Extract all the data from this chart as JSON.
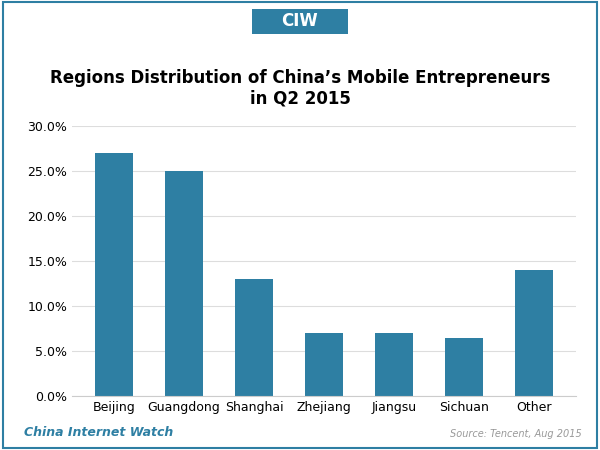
{
  "title": "Regions Distribution of China’s Mobile Entrepreneurs\nin Q2 2015",
  "categories": [
    "Beijing",
    "Guangdong",
    "Shanghai",
    "Zhejiang",
    "Jiangsu",
    "Sichuan",
    "Other"
  ],
  "values": [
    0.27,
    0.25,
    0.13,
    0.07,
    0.07,
    0.065,
    0.14
  ],
  "bar_color": "#2e7fa3",
  "ylim": [
    0,
    0.3
  ],
  "yticks": [
    0.0,
    0.05,
    0.1,
    0.15,
    0.2,
    0.25,
    0.3
  ],
  "ytick_labels": [
    "0.0%",
    "5.0%",
    "10.0%",
    "15.0%",
    "20.0%",
    "25.0%",
    "30.0%"
  ],
  "background_color": "#ffffff",
  "border_color": "#2e7fa3",
  "footer_left": "China Internet Watch",
  "footer_right": "Source: Tencent, Aug 2015",
  "ciw_label": "CIW",
  "ciw_box_color": "#2e7fa3",
  "ciw_text_color": "#ffffff",
  "title_fontsize": 12,
  "tick_fontsize": 9,
  "footer_fontsize": 9
}
